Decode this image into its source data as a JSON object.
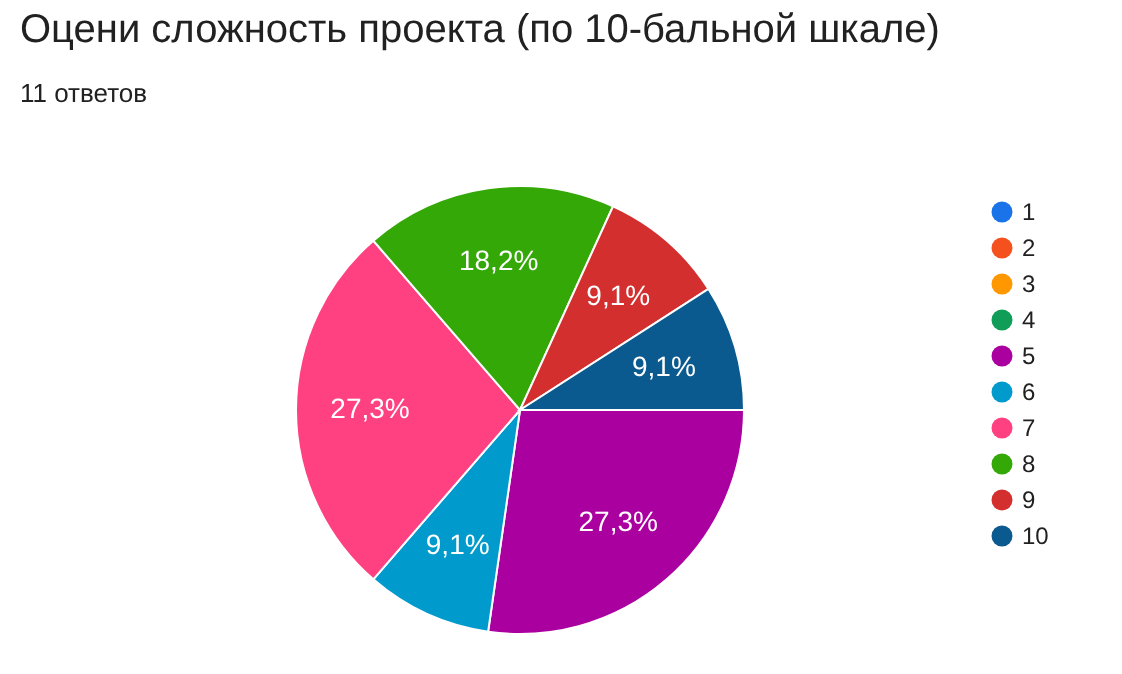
{
  "chart_data": {
    "type": "pie",
    "title": "Оцени сложность проекта (по 10-бальной шкале)",
    "subtitle": "11 ответов",
    "categories": [
      "1",
      "2",
      "3",
      "4",
      "5",
      "6",
      "7",
      "8",
      "9",
      "10"
    ],
    "values": [
      0,
      0,
      0,
      0,
      27.3,
      9.1,
      27.3,
      18.2,
      9.1,
      9.1
    ],
    "value_labels": [
      null,
      null,
      null,
      null,
      "27,3%",
      "9,1%",
      "27,3%",
      "18,2%",
      "9,1%",
      "9,1%"
    ],
    "colors": [
      "#1a73e8",
      "#f4511e",
      "#ff9800",
      "#0f9d58",
      "#ab00a0",
      "#009bcc",
      "#ff4081",
      "#34a806",
      "#d32f2f",
      "#0b5a8f"
    ],
    "legend": "right"
  }
}
